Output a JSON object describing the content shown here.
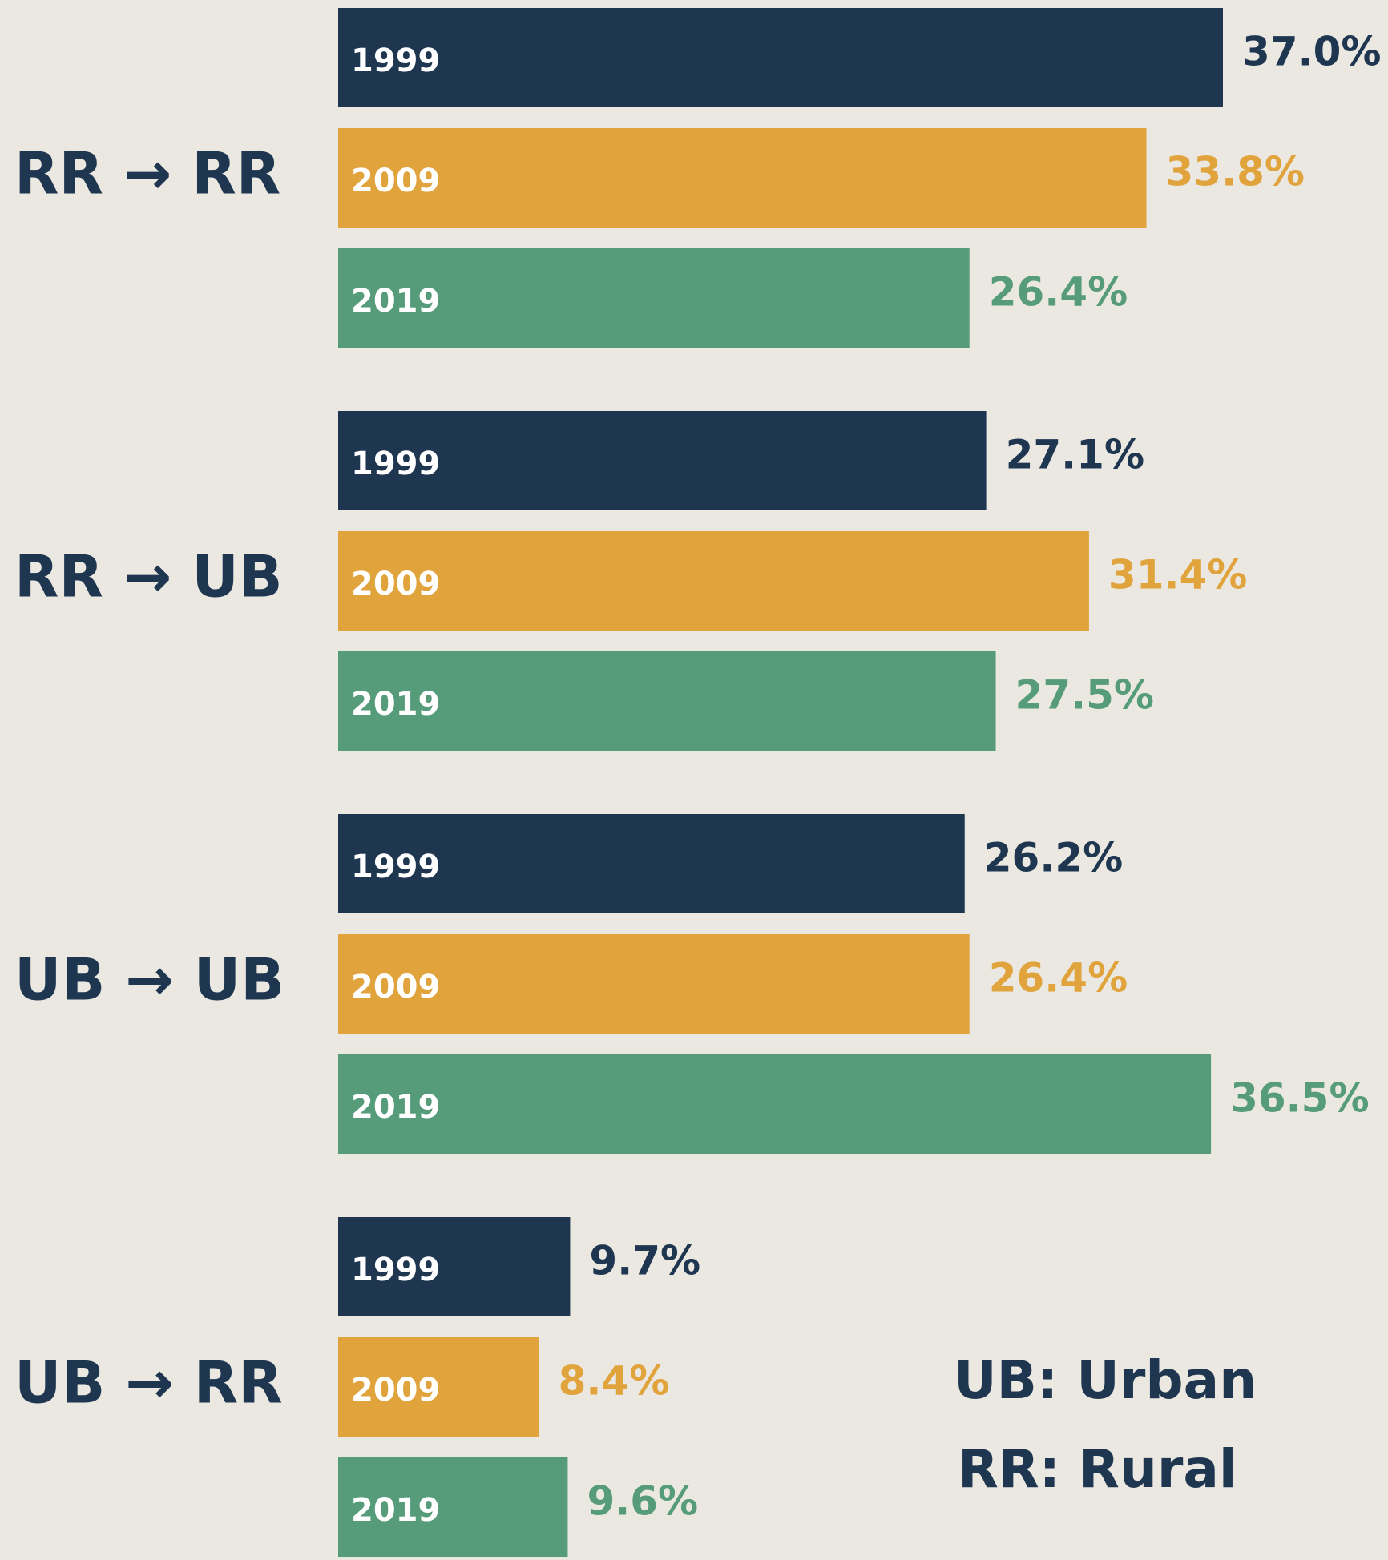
{
  "chart_data": {
    "type": "grouped_hbar",
    "categories": [
      "RR → RR",
      "RR → UB",
      "UB → UB",
      "UB → RR"
    ],
    "series": [
      {
        "name": "1999",
        "color": "#1f3650",
        "values": [
          37.0,
          27.1,
          26.2,
          9.7
        ],
        "value_labels": [
          "37.0%",
          "27.1%",
          "26.2%",
          "9.7%"
        ]
      },
      {
        "name": "2009",
        "color": "#e1a33c",
        "values": [
          33.8,
          31.4,
          26.4,
          8.4
        ],
        "value_labels": [
          "33.8%",
          "31.4%",
          "26.4%",
          "8.4%"
        ]
      },
      {
        "name": "2019",
        "color": "#569c7b",
        "values": [
          26.4,
          27.5,
          36.5,
          9.6
        ],
        "value_labels": [
          "26.4%",
          "27.5%",
          "36.5%",
          "9.6%"
        ]
      }
    ],
    "annotations": [
      "UB: Urban",
      "RR: Rural"
    ]
  }
}
